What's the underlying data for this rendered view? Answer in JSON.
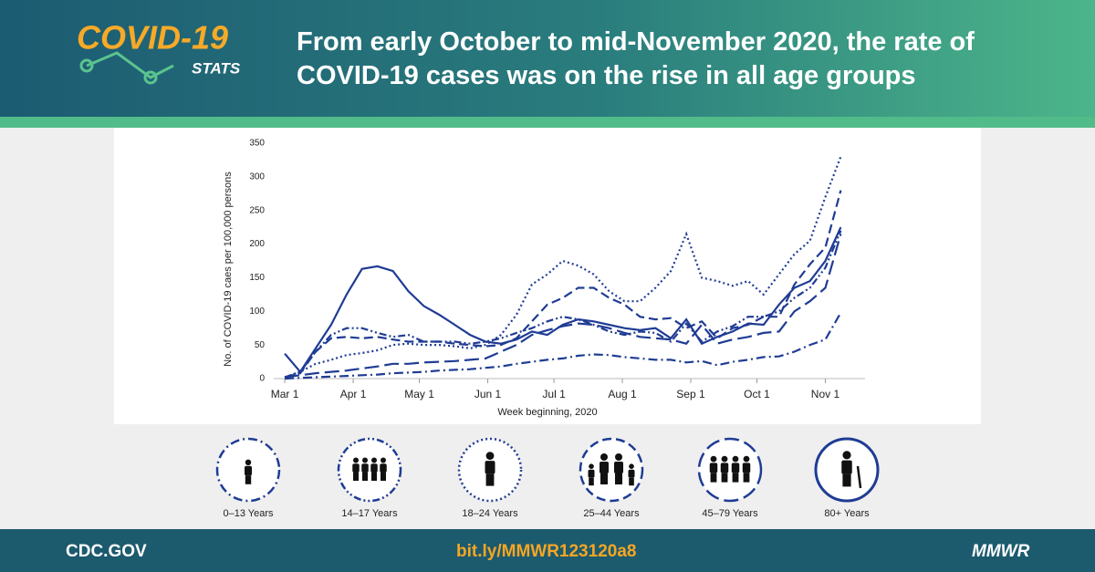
{
  "header": {
    "logo_title": "COVID-19",
    "logo_subtitle": "STATS",
    "title": "From early October to mid-November 2020, the rate of COVID-19 cases was on the rise in all age groups"
  },
  "chart_data": {
    "type": "line",
    "ylabel": "No. of COVID-19 caes per 100,000 persons",
    "xlabel": "Week beginning, 2020",
    "x": [
      0,
      7,
      14,
      21,
      28,
      35,
      42,
      49,
      56,
      63,
      70,
      77,
      84,
      91,
      98,
      105,
      112,
      119,
      126,
      133,
      140,
      147,
      154,
      161,
      168,
      175,
      182,
      189,
      196,
      203,
      210,
      217,
      224,
      231,
      238,
      245,
      252
    ],
    "xlim": [
      -5,
      263
    ],
    "xticks": [
      {
        "value": 0,
        "label": "Mar 1"
      },
      {
        "value": 31,
        "label": "Apr 1"
      },
      {
        "value": 61,
        "label": "May 1"
      },
      {
        "value": 92,
        "label": "Jun 1"
      },
      {
        "value": 122,
        "label": "Jul 1"
      },
      {
        "value": 153,
        "label": "Aug 1"
      },
      {
        "value": 184,
        "label": "Sep 1"
      },
      {
        "value": 214,
        "label": "Oct 1"
      },
      {
        "value": 245,
        "label": "Nov 1"
      }
    ],
    "ylim": [
      0,
      350
    ],
    "yticks": [
      0,
      50,
      100,
      150,
      200,
      250,
      300,
      350
    ],
    "series": [
      {
        "name": "0–13 Years",
        "color": "#1f3c94",
        "line_style": "dash-dot",
        "values": [
          0,
          1,
          2,
          3,
          4,
          5,
          6,
          8,
          9,
          10,
          12,
          13,
          14,
          16,
          18,
          22,
          25,
          28,
          30,
          34,
          36,
          35,
          32,
          30,
          28,
          28,
          24,
          26,
          20,
          25,
          28,
          32,
          33,
          40,
          50,
          58,
          98
        ]
      },
      {
        "name": "14–17 Years",
        "color": "#1f3c94",
        "line_style": "dash-dot-dot",
        "values": [
          2,
          10,
          40,
          65,
          75,
          75,
          68,
          62,
          65,
          55,
          55,
          55,
          52,
          55,
          60,
          68,
          75,
          85,
          92,
          88,
          80,
          70,
          65,
          70,
          68,
          55,
          82,
          55,
          70,
          78,
          92,
          92,
          100,
          120,
          135,
          165,
          220
        ]
      },
      {
        "name": "18–24 Years",
        "color": "#1f3c94",
        "line_style": "dotted",
        "values": [
          2,
          10,
          22,
          28,
          35,
          38,
          42,
          50,
          52,
          50,
          50,
          48,
          45,
          50,
          65,
          95,
          140,
          155,
          175,
          168,
          155,
          130,
          115,
          115,
          135,
          160,
          215,
          150,
          145,
          138,
          145,
          125,
          155,
          185,
          205,
          270,
          330
        ]
      },
      {
        "name": "25–44 Years",
        "color": "#1f3c94",
        "line_style": "dashed",
        "values": [
          2,
          8,
          40,
          60,
          62,
          60,
          62,
          58,
          55,
          55,
          55,
          52,
          50,
          48,
          50,
          60,
          85,
          110,
          120,
          135,
          135,
          120,
          110,
          92,
          88,
          90,
          75,
          85,
          60,
          75,
          80,
          92,
          92,
          140,
          170,
          195,
          280
        ]
      },
      {
        "name": "45–79 Years",
        "color": "#1f3c94",
        "line_style": "long-dash",
        "values": [
          2,
          5,
          8,
          10,
          12,
          15,
          18,
          22,
          22,
          24,
          25,
          26,
          28,
          30,
          40,
          50,
          65,
          72,
          78,
          82,
          80,
          75,
          68,
          62,
          60,
          58,
          52,
          80,
          52,
          58,
          62,
          68,
          70,
          100,
          115,
          135,
          215
        ]
      },
      {
        "name": "80+ Years",
        "color": "#1f3c94",
        "line_style": "solid",
        "values": [
          37,
          10,
          45,
          80,
          125,
          163,
          167,
          160,
          130,
          108,
          95,
          80,
          65,
          55,
          52,
          58,
          70,
          65,
          80,
          88,
          85,
          80,
          75,
          72,
          75,
          60,
          88,
          52,
          62,
          70,
          82,
          80,
          110,
          135,
          145,
          175,
          225
        ]
      }
    ]
  },
  "footer": {
    "left": "CDC.GOV",
    "link": "bit.ly/MMWR123120a8",
    "right": "MMWR"
  }
}
